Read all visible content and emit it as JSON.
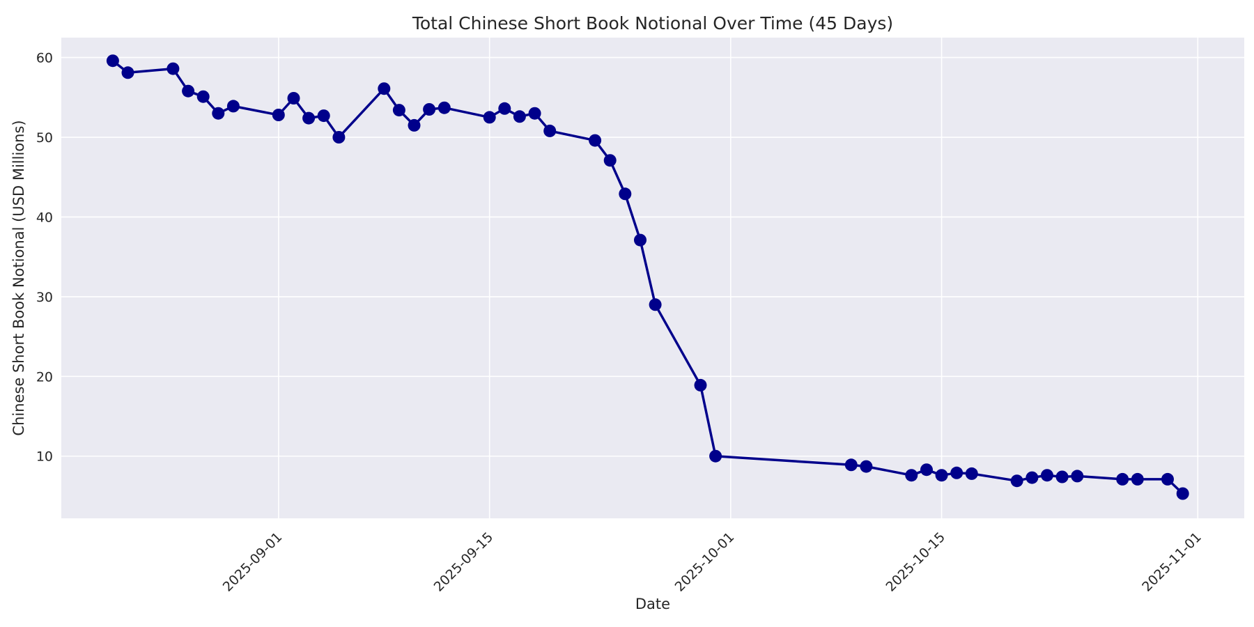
{
  "figure": {
    "title": "Total Chinese Short Book Notional Over Time (45 Days)",
    "xlabel": "Date",
    "ylabel": "Chinese Short Book Notional (USD Millions)"
  },
  "style": {
    "figure_background": "#ffffff",
    "plot_background": "#eaeaf2",
    "grid_color": "#ffffff",
    "line_color": "#00008b",
    "marker_color": "#00008b",
    "text_color": "#262626"
  },
  "chart_data": {
    "type": "line",
    "title": "Total Chinese Short Book Notional Over Time (45 Days)",
    "xlabel": "Date",
    "ylabel": "Chinese Short Book Notional (USD Millions)",
    "series_name": "Total Chinese Short Book Notional",
    "marker": "o",
    "grid": true,
    "legend": false,
    "x": [
      "2025-08-21",
      "2025-08-22",
      "2025-08-25",
      "2025-08-26",
      "2025-08-27",
      "2025-08-28",
      "2025-08-29",
      "2025-09-01",
      "2025-09-02",
      "2025-09-03",
      "2025-09-04",
      "2025-09-05",
      "2025-09-08",
      "2025-09-09",
      "2025-09-10",
      "2025-09-11",
      "2025-09-12",
      "2025-09-15",
      "2025-09-16",
      "2025-09-17",
      "2025-09-18",
      "2025-09-19",
      "2025-09-22",
      "2025-09-23",
      "2025-09-24",
      "2025-09-25",
      "2025-09-26",
      "2025-09-29",
      "2025-09-30",
      "2025-10-09",
      "2025-10-10",
      "2025-10-13",
      "2025-10-14",
      "2025-10-15",
      "2025-10-16",
      "2025-10-17",
      "2025-10-20",
      "2025-10-21",
      "2025-10-22",
      "2025-10-23",
      "2025-10-24",
      "2025-10-27",
      "2025-10-28",
      "2025-10-30",
      "2025-10-31"
    ],
    "values": [
      59.6,
      58.1,
      58.6,
      55.8,
      55.1,
      53.0,
      53.9,
      52.8,
      54.9,
      52.4,
      52.7,
      50.0,
      56.1,
      53.4,
      51.5,
      53.5,
      53.7,
      52.5,
      53.6,
      52.6,
      53.0,
      50.8,
      49.6,
      47.1,
      42.9,
      37.1,
      29.0,
      18.9,
      10.0,
      8.9,
      8.7,
      7.6,
      8.3,
      7.6,
      7.9,
      7.8,
      6.9,
      7.3,
      7.6,
      7.4,
      7.5,
      7.1,
      7.1,
      7.1,
      5.3
    ],
    "xticks": [
      "2025-09-01",
      "2025-09-15",
      "2025-10-01",
      "2025-10-15",
      "2025-11-01"
    ],
    "xtick_rotation_deg": 45,
    "yticks": [
      10,
      20,
      30,
      40,
      50,
      60
    ],
    "xlim": [
      "2025-08-17T14:00:00Z",
      "2025-11-04T02:00:00Z"
    ],
    "ylim": [
      2.2,
      62.5
    ]
  }
}
